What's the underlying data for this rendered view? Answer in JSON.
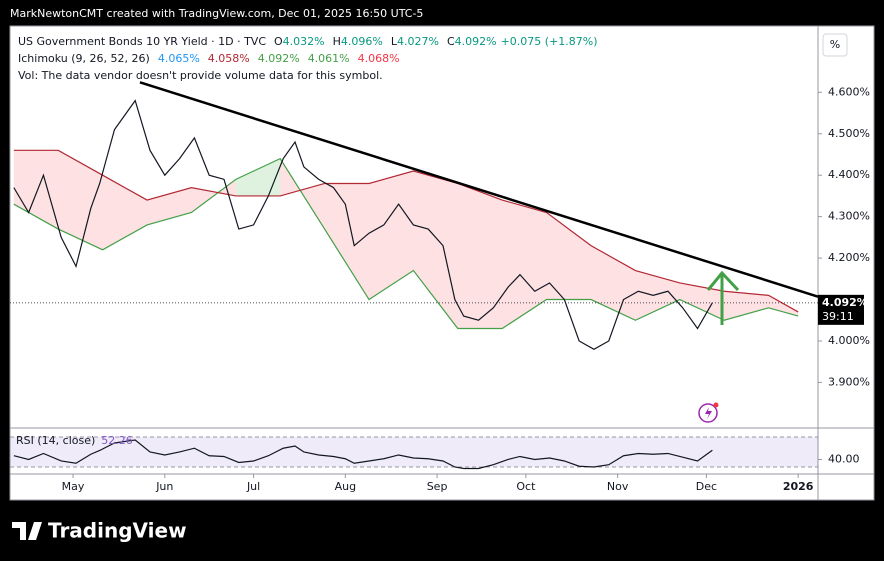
{
  "header": "MarkNewtonCMT created with TradingView.com, Dec 01, 2025 16:50 UTC-5",
  "unit_button": "%",
  "footer": {
    "brand": "TradingView"
  },
  "chart_data": {
    "type": "line",
    "title": "US Government Bonds 10 YR Yield · 1D · TVC",
    "ohlc": [
      {
        "label": "O",
        "value": "4.032%"
      },
      {
        "label": "H",
        "value": "4.096%"
      },
      {
        "label": "L",
        "value": "4.027%"
      },
      {
        "label": "C",
        "value": "4.092%"
      }
    ],
    "change": "+0.075 (+1.87%)",
    "volume_note": "Vol: The data vendor doesn't provide volume data for this symbol.",
    "color": "#131722",
    "x": [
      -20,
      -15,
      -10,
      -4,
      1,
      6,
      9,
      14,
      21,
      26,
      31,
      36,
      41,
      46,
      51,
      56,
      61,
      66,
      71,
      75,
      78,
      83,
      88,
      92,
      95,
      100,
      105,
      110,
      115,
      120,
      125,
      129,
      132,
      137,
      142,
      147,
      151,
      156,
      161,
      166,
      171,
      176,
      181,
      186,
      191,
      196,
      201,
      206,
      211,
      216
    ],
    "values": [
      4.37,
      4.31,
      4.4,
      4.25,
      4.18,
      4.32,
      4.38,
      4.51,
      4.58,
      4.46,
      4.4,
      4.44,
      4.49,
      4.4,
      4.39,
      4.27,
      4.28,
      4.35,
      4.44,
      4.48,
      4.42,
      4.39,
      4.37,
      4.33,
      4.23,
      4.26,
      4.28,
      4.33,
      4.28,
      4.27,
      4.23,
      4.1,
      4.06,
      4.05,
      4.08,
      4.13,
      4.16,
      4.12,
      4.14,
      4.1,
      4.0,
      3.98,
      4.0,
      4.1,
      4.12,
      4.11,
      4.12,
      4.08,
      4.03,
      4.092
    ],
    "xlim": [
      -21.3,
      251.7
    ],
    "ylim": [
      3.79,
      4.76
    ],
    "xticks": [
      {
        "value": 0,
        "label": "May"
      },
      {
        "value": 31,
        "label": "Jun"
      },
      {
        "value": 61,
        "label": "Jul"
      },
      {
        "value": 92,
        "label": "Aug"
      },
      {
        "value": 123,
        "label": "Sep"
      },
      {
        "value": 153,
        "label": "Oct"
      },
      {
        "value": 184,
        "label": "Nov"
      },
      {
        "value": 214,
        "label": "Dec"
      },
      {
        "value": 245,
        "label": "2026"
      }
    ],
    "yticks": [
      {
        "value": 4.6,
        "label": "4.600%"
      },
      {
        "value": 4.5,
        "label": "4.500%"
      },
      {
        "value": 4.4,
        "label": "4.400%"
      },
      {
        "value": 4.3,
        "label": "4.300%"
      },
      {
        "value": 4.2,
        "label": "4.200%"
      },
      {
        "value": 4.0,
        "label": "4.000%"
      },
      {
        "value": 3.9,
        "label": "3.900%"
      }
    ],
    "last_price": {
      "value": 4.092,
      "label": "4.092%"
    },
    "countdown": "39:11",
    "trendline": {
      "x": [
        22.6,
        251.7
      ],
      "y": [
        4.624,
        4.107
      ],
      "color": "#000000"
    },
    "ichimoku": {
      "name": "Ichimoku (9, 26, 52, 26)",
      "readings": [
        {
          "label": "4.065%",
          "color": "#2196f3"
        },
        {
          "label": "4.058%",
          "color": "#b22833"
        },
        {
          "label": "4.092%",
          "color": "#43a047"
        },
        {
          "label": "4.061%",
          "color": "#43a047"
        },
        {
          "label": "4.068%",
          "color": "#f23645"
        }
      ],
      "x": [
        -20,
        -5,
        10,
        25,
        40,
        55,
        70,
        85,
        100,
        115,
        130,
        145,
        160,
        175,
        190,
        205,
        220,
        235,
        245
      ],
      "span_a": [
        4.33,
        4.27,
        4.22,
        4.28,
        4.31,
        4.39,
        4.44,
        4.27,
        4.1,
        4.17,
        4.03,
        4.03,
        4.1,
        4.1,
        4.05,
        4.1,
        4.05,
        4.08,
        4.06
      ],
      "span_b": [
        4.46,
        4.46,
        4.4,
        4.34,
        4.37,
        4.35,
        4.35,
        4.38,
        4.38,
        4.41,
        4.38,
        4.34,
        4.31,
        4.23,
        4.17,
        4.14,
        4.12,
        4.11,
        4.07
      ],
      "span_a_color": "#43a047",
      "span_b_color": "#b22833",
      "fill_up": "rgba(76,175,80,0.18)",
      "fill_down": "rgba(242,54,69,0.15)"
    },
    "rsi": {
      "name": "RSI (14, close)",
      "last_label": "52.26",
      "color": "#131722",
      "values": [
        45,
        40,
        48,
        38,
        35,
        47,
        52,
        62,
        66,
        50,
        46,
        50,
        55,
        45,
        44,
        36,
        38,
        45,
        55,
        58,
        50,
        46,
        44,
        41,
        35,
        38,
        41,
        46,
        42,
        41,
        38,
        30,
        28,
        28,
        33,
        40,
        44,
        40,
        42,
        38,
        31,
        30,
        33,
        45,
        48,
        47,
        48,
        43,
        38,
        52.26
      ],
      "ylim": [
        23.3,
        79.3
      ],
      "yticks": [
        {
          "value": 40,
          "label": "40.00"
        }
      ],
      "bands": [
        30,
        70
      ],
      "band_fill": "rgba(126,87,194,0.12)"
    }
  }
}
